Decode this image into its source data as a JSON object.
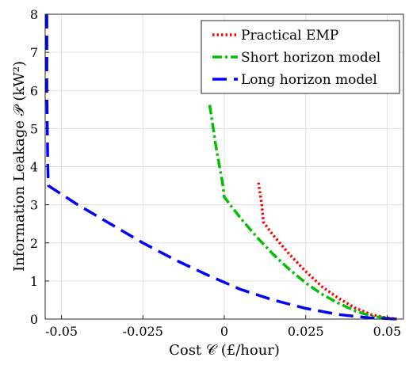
{
  "chart_data": {
    "type": "line",
    "xlabel": "Cost 𝒞 (£/hour)",
    "ylabel": "Information Leakage 𝒫 (kW²)",
    "xlim": [
      -0.055,
      0.055
    ],
    "ylim": [
      0,
      8
    ],
    "x_ticks": [
      -0.05,
      -0.025,
      0,
      0.025,
      0.05
    ],
    "x_tick_labels": [
      "-0.05",
      "-0.025",
      "0",
      "0.025",
      "0.05"
    ],
    "y_ticks": [
      0,
      1,
      2,
      3,
      4,
      5,
      6,
      7,
      8
    ],
    "y_tick_labels": [
      "0",
      "1",
      "2",
      "3",
      "4",
      "5",
      "6",
      "7",
      "8"
    ],
    "grid": true,
    "legend_position": "top-right",
    "series": [
      {
        "name": "Practical EMP",
        "color": "#ff0000",
        "style": "dotted",
        "x": [
          0.0105,
          0.0115,
          0.012,
          0.015,
          0.02,
          0.025,
          0.03,
          0.035,
          0.04,
          0.045,
          0.05,
          0.053
        ],
        "y": [
          3.58,
          3.0,
          2.55,
          2.2,
          1.7,
          1.25,
          0.85,
          0.55,
          0.3,
          0.12,
          0.03,
          0.0
        ]
      },
      {
        "name": "Short horizon model",
        "color": "#00c000",
        "style": "dashdot",
        "x": [
          -0.0045,
          -0.0025,
          -0.0005,
          0.0,
          0.005,
          0.01,
          0.015,
          0.02,
          0.025,
          0.03,
          0.035,
          0.04,
          0.045,
          0.05,
          0.052
        ],
        "y": [
          5.62,
          4.5,
          3.55,
          3.2,
          2.65,
          2.15,
          1.7,
          1.3,
          0.95,
          0.65,
          0.42,
          0.22,
          0.08,
          0.02,
          0.0
        ]
      },
      {
        "name": "Long horizon model",
        "color": "#0000ff",
        "style": "dashed",
        "x": [
          -0.0545,
          -0.0545,
          -0.0542,
          -0.054,
          -0.045,
          -0.035,
          -0.025,
          -0.015,
          -0.005,
          0.005,
          0.015,
          0.025,
          0.035,
          0.045,
          0.0535
        ],
        "y": [
          8.0,
          6.0,
          4.0,
          3.5,
          3.0,
          2.5,
          2.0,
          1.55,
          1.15,
          0.78,
          0.5,
          0.28,
          0.12,
          0.03,
          0.0
        ]
      }
    ]
  }
}
